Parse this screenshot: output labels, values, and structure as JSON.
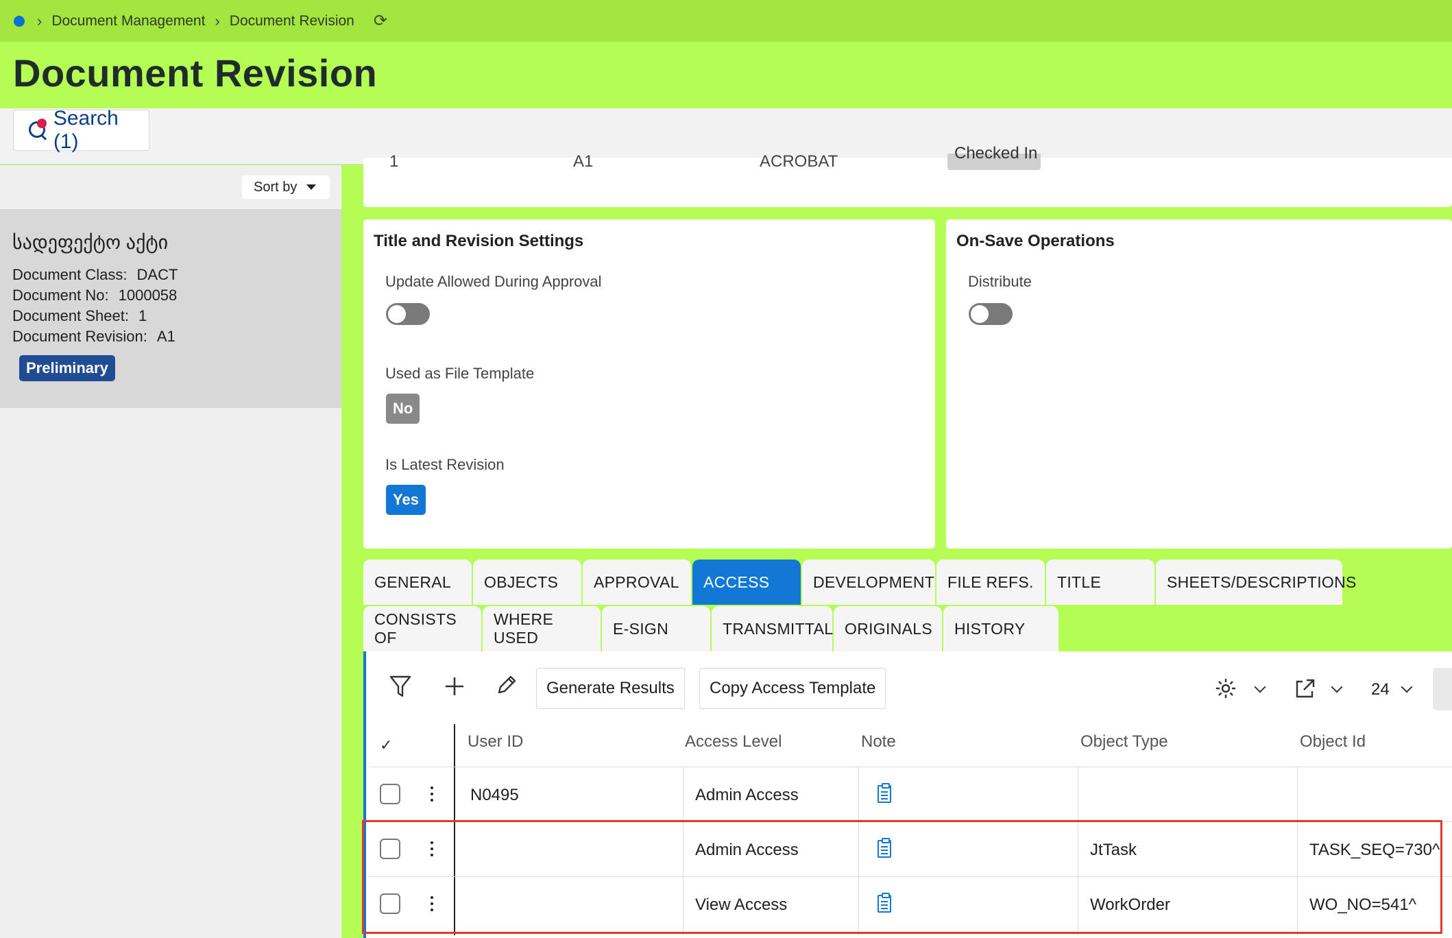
{
  "breadcrumb": {
    "items": [
      "Document Management",
      "Document Revision"
    ]
  },
  "page": {
    "title": "Document Revision"
  },
  "search": {
    "label": "Search (1)"
  },
  "left_panel": {
    "sort_label": "Sort by",
    "card": {
      "title": "სადეფექტო აქტი",
      "fields": [
        {
          "label": "Document Class:",
          "value": "DACT"
        },
        {
          "label": "Document No:",
          "value": "1000058"
        },
        {
          "label": "Document Sheet:",
          "value": "1"
        },
        {
          "label": "Document Revision:",
          "value": "A1"
        }
      ],
      "status": "Preliminary"
    }
  },
  "top_card": {
    "cells": [
      "1",
      "A1",
      "ACROBAT",
      "Checked In"
    ]
  },
  "title_settings": {
    "heading": "Title and Revision Settings",
    "update_allowed_label": "Update Allowed During Approval",
    "file_template_label": "Used as File Template",
    "file_template_value": "No",
    "latest_revision_label": "Is Latest Revision",
    "latest_revision_value": "Yes"
  },
  "on_save": {
    "heading": "On-Save Operations",
    "distribute_label": "Distribute"
  },
  "tabs": {
    "row1": [
      "GENERAL",
      "OBJECTS",
      "APPROVAL",
      "ACCESS",
      "DEVELOPMENT",
      "FILE REFS.",
      "TITLE",
      "SHEETS/DESCRIPTIONS"
    ],
    "row2": [
      "CONSISTS OF",
      "WHERE USED",
      "E-SIGN",
      "TRANSMITTAL",
      "ORIGINALS",
      "HISTORY"
    ],
    "active": "ACCESS"
  },
  "toolbar": {
    "generate_label": "Generate Results",
    "copy_label": "Copy Access Template",
    "rows_per_page": "24"
  },
  "table": {
    "headers": [
      "User ID",
      "Access Level",
      "Note",
      "Object Type",
      "Object Id"
    ],
    "rows": [
      {
        "user_id": "N0495",
        "access_level": "Admin Access",
        "object_type": "",
        "object_id": ""
      },
      {
        "user_id": "",
        "access_level": "Admin Access",
        "object_type": "JtTask",
        "object_id": "TASK_SEQ=730^"
      },
      {
        "user_id": "",
        "access_level": "View Access",
        "object_type": "WorkOrder",
        "object_id": "WO_NO=541^"
      }
    ]
  },
  "colors": {
    "topbar": "#a3e63f",
    "page_bg": "#b5fc55",
    "accent": "#1278d6",
    "status_chip": "#1f4c93",
    "highlight": "#e03a2f"
  }
}
